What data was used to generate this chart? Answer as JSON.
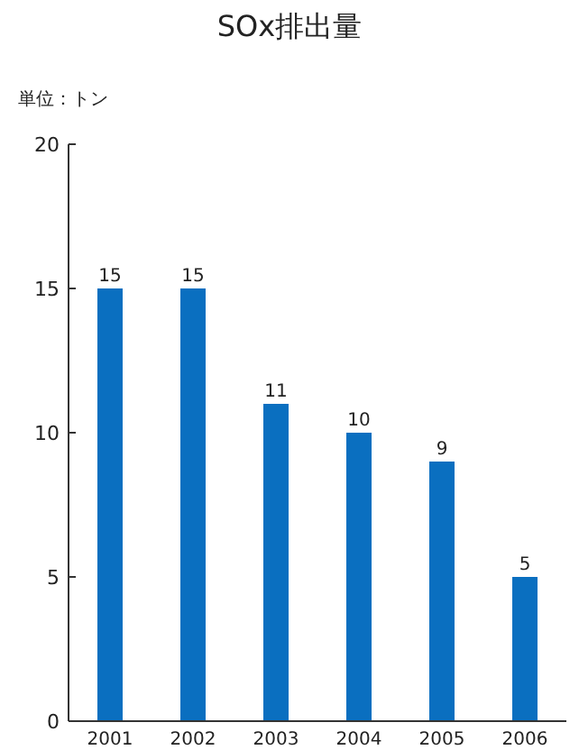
{
  "chart_data": {
    "type": "bar",
    "title": "SOx排出量",
    "ylabel": "単位：トン",
    "categories": [
      "2001",
      "2002",
      "2003",
      "2004",
      "2005",
      "2006"
    ],
    "values": [
      15,
      15,
      11,
      10,
      9,
      5
    ],
    "color": "#0a6fc0",
    "ylim": [
      0,
      20
    ],
    "yticks": [
      0,
      5,
      10,
      15,
      20
    ],
    "data_labels": true
  }
}
